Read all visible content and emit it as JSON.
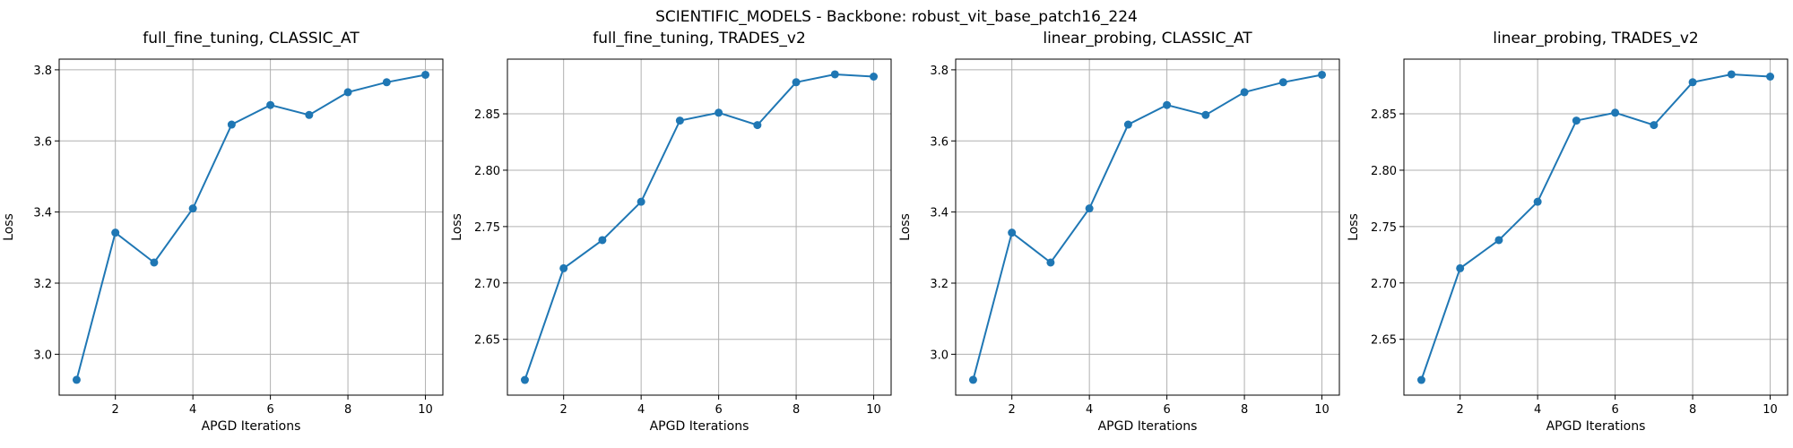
{
  "suptitle": "SCIENTIFIC_MODELS - Backbone: robust_vit_base_patch16_224",
  "chart_data": [
    {
      "type": "line",
      "title": "full_fine_tuning, CLASSIC_AT",
      "xlabel": "APGD Iterations",
      "ylabel": "Loss",
      "x": [
        1,
        2,
        3,
        4,
        5,
        6,
        7,
        8,
        9,
        10
      ],
      "series": [
        {
          "values": [
            2.928,
            3.342,
            3.258,
            3.41,
            3.646,
            3.701,
            3.673,
            3.737,
            3.765,
            3.786
          ],
          "color": "#1f77b4",
          "marker": "circle"
        }
      ],
      "xlim": [
        0.55,
        10.45
      ],
      "ylim": [
        2.885,
        3.83
      ],
      "xticks": [
        2,
        4,
        6,
        8,
        10
      ],
      "yticks": [
        3.0,
        3.2,
        3.4,
        3.6,
        3.8
      ],
      "ytick_labels": [
        "3.0",
        "3.2",
        "3.4",
        "3.6",
        "3.8"
      ],
      "grid": true
    },
    {
      "type": "line",
      "title": "full_fine_tuning, TRADES_v2",
      "xlabel": "APGD Iterations",
      "ylabel": "Loss",
      "x": [
        1,
        2,
        3,
        4,
        5,
        6,
        7,
        8,
        9,
        10
      ],
      "series": [
        {
          "values": [
            2.614,
            2.713,
            2.738,
            2.772,
            2.844,
            2.851,
            2.84,
            2.878,
            2.885,
            2.883
          ],
          "color": "#1f77b4",
          "marker": "circle"
        }
      ],
      "xlim": [
        0.55,
        10.45
      ],
      "ylim": [
        2.6005,
        2.8985
      ],
      "xticks": [
        2,
        4,
        6,
        8,
        10
      ],
      "yticks": [
        2.65,
        2.7,
        2.75,
        2.8,
        2.85
      ],
      "ytick_labels": [
        "2.65",
        "2.70",
        "2.75",
        "2.80",
        "2.85"
      ],
      "grid": true
    },
    {
      "type": "line",
      "title": "linear_probing, CLASSIC_AT",
      "xlabel": "APGD Iterations",
      "ylabel": "Loss",
      "x": [
        1,
        2,
        3,
        4,
        5,
        6,
        7,
        8,
        9,
        10
      ],
      "series": [
        {
          "values": [
            2.928,
            3.342,
            3.258,
            3.41,
            3.646,
            3.701,
            3.673,
            3.737,
            3.765,
            3.786
          ],
          "color": "#1f77b4",
          "marker": "circle"
        }
      ],
      "xlim": [
        0.55,
        10.45
      ],
      "ylim": [
        2.885,
        3.83
      ],
      "xticks": [
        2,
        4,
        6,
        8,
        10
      ],
      "yticks": [
        3.0,
        3.2,
        3.4,
        3.6,
        3.8
      ],
      "ytick_labels": [
        "3.0",
        "3.2",
        "3.4",
        "3.6",
        "3.8"
      ],
      "grid": true
    },
    {
      "type": "line",
      "title": "linear_probing, TRADES_v2",
      "xlabel": "APGD Iterations",
      "ylabel": "Loss",
      "x": [
        1,
        2,
        3,
        4,
        5,
        6,
        7,
        8,
        9,
        10
      ],
      "series": [
        {
          "values": [
            2.614,
            2.713,
            2.738,
            2.772,
            2.844,
            2.851,
            2.84,
            2.878,
            2.885,
            2.883
          ],
          "color": "#1f77b4",
          "marker": "circle"
        }
      ],
      "xlim": [
        0.55,
        10.45
      ],
      "ylim": [
        2.6005,
        2.8985
      ],
      "xticks": [
        2,
        4,
        6,
        8,
        10
      ],
      "yticks": [
        2.65,
        2.7,
        2.75,
        2.8,
        2.85
      ],
      "ytick_labels": [
        "2.65",
        "2.70",
        "2.75",
        "2.80",
        "2.85"
      ],
      "grid": true
    }
  ]
}
